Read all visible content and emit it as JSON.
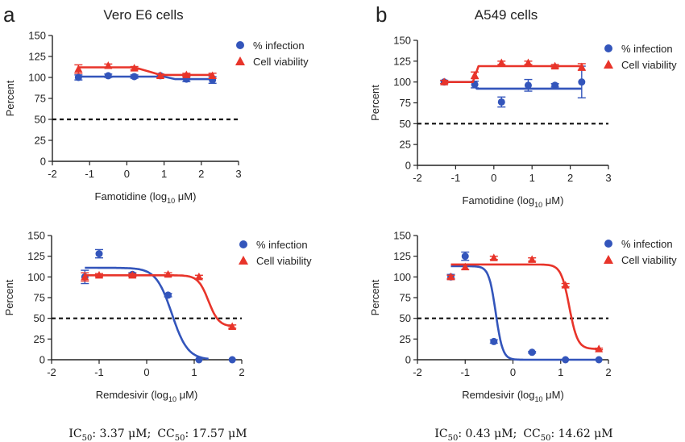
{
  "panels": [
    {
      "letter": "a",
      "title": "Vero E6 cells",
      "summary": {
        "ic_label": "IC",
        "ic_sub": "50",
        "ic_value": ": 3.37 μM;",
        "cc_label": "CC",
        "cc_sub": "50",
        "cc_value": ": 17.57 μM"
      }
    },
    {
      "letter": "b",
      "title": "A549 cells",
      "summary": {
        "ic_label": "IC",
        "ic_sub": "50",
        "ic_value": ": 0.43 μM;",
        "cc_label": "CC",
        "cc_sub": "50",
        "cc_value": ": 14.62 μM"
      }
    }
  ],
  "colors": {
    "infection": "#3355bb",
    "viability": "#e8342a",
    "axis": "#222222"
  },
  "chart_data": [
    {
      "type": "scatter",
      "panel": "a",
      "xlabel": "Famotidine (log",
      "xlabel_sub": "10",
      "xlabel_tail": " μM)",
      "ylabel": "Percent",
      "xlim": [
        -2,
        3
      ],
      "ylim": [
        0,
        150
      ],
      "xticks": [
        -2,
        -1,
        0,
        1,
        2,
        3
      ],
      "yticks": [
        0,
        25,
        50,
        75,
        100,
        125,
        150
      ],
      "reference_line": 50,
      "legend": "top-right",
      "series": [
        {
          "name": "% infection",
          "marker": "circle",
          "color": "#3355bb",
          "points": [
            {
              "x": -1.3,
              "y": 100,
              "err": 3
            },
            {
              "x": -0.5,
              "y": 102,
              "err": 2
            },
            {
              "x": 0.2,
              "y": 101,
              "err": 2
            },
            {
              "x": 0.9,
              "y": 102,
              "err": 2
            },
            {
              "x": 1.6,
              "y": 98,
              "err": 3
            },
            {
              "x": 2.3,
              "y": 97,
              "err": 4
            }
          ],
          "fit": [
            {
              "x": -1.3,
              "y": 101
            },
            {
              "x": 1.0,
              "y": 101
            },
            {
              "x": 1.3,
              "y": 98
            },
            {
              "x": 2.3,
              "y": 98
            }
          ]
        },
        {
          "name": "Cell viability",
          "marker": "triangle",
          "color": "#e8342a",
          "points": [
            {
              "x": -1.3,
              "y": 110,
              "err": 5
            },
            {
              "x": -0.5,
              "y": 114,
              "err": 2
            },
            {
              "x": 0.2,
              "y": 111,
              "err": 2
            },
            {
              "x": 0.9,
              "y": 102,
              "err": 2
            },
            {
              "x": 1.6,
              "y": 103,
              "err": 2
            },
            {
              "x": 2.3,
              "y": 102,
              "err": 3
            }
          ],
          "fit": [
            {
              "x": -1.3,
              "y": 112
            },
            {
              "x": 0.2,
              "y": 112
            },
            {
              "x": 0.6,
              "y": 107
            },
            {
              "x": 0.9,
              "y": 103
            },
            {
              "x": 2.3,
              "y": 103
            }
          ]
        }
      ]
    },
    {
      "type": "scatter",
      "panel": "b",
      "xlabel": "Famotidine (log",
      "xlabel_sub": "10",
      "xlabel_tail": " μM)",
      "ylabel": "Percent",
      "xlim": [
        -2,
        3
      ],
      "ylim": [
        0,
        150
      ],
      "xticks": [
        -2,
        -1,
        0,
        1,
        2,
        3
      ],
      "yticks": [
        0,
        25,
        50,
        75,
        100,
        125,
        150
      ],
      "reference_line": 50,
      "legend": "top-right",
      "series": [
        {
          "name": "% infection",
          "marker": "circle",
          "color": "#3355bb",
          "points": [
            {
              "x": -1.3,
              "y": 100,
              "err": 2
            },
            {
              "x": -0.5,
              "y": 97,
              "err": 4
            },
            {
              "x": 0.2,
              "y": 76,
              "err": 6
            },
            {
              "x": 0.9,
              "y": 96,
              "err": 7
            },
            {
              "x": 1.6,
              "y": 96,
              "err": 2
            },
            {
              "x": 2.3,
              "y": 100,
              "err": 19
            }
          ],
          "fit": [
            {
              "x": -1.3,
              "y": 100
            },
            {
              "x": -0.55,
              "y": 100
            },
            {
              "x": -0.45,
              "y": 92
            },
            {
              "x": 2.3,
              "y": 92
            }
          ]
        },
        {
          "name": "Cell viability",
          "marker": "triangle",
          "color": "#e8342a",
          "points": [
            {
              "x": -1.3,
              "y": 100,
              "err": 2
            },
            {
              "x": -0.5,
              "y": 108,
              "err": 4
            },
            {
              "x": 0.2,
              "y": 123,
              "err": 2
            },
            {
              "x": 0.9,
              "y": 123,
              "err": 2
            },
            {
              "x": 1.6,
              "y": 119,
              "err": 2
            },
            {
              "x": 2.3,
              "y": 118,
              "err": 4
            }
          ],
          "fit": [
            {
              "x": -1.3,
              "y": 100
            },
            {
              "x": -0.55,
              "y": 100
            },
            {
              "x": -0.4,
              "y": 119
            },
            {
              "x": 2.3,
              "y": 119
            }
          ]
        }
      ]
    },
    {
      "type": "scatter",
      "panel": "a",
      "xlabel": "Remdesivir (log",
      "xlabel_sub": "10",
      "xlabel_tail": " μM)",
      "ylabel": "Percent",
      "xlim": [
        -2,
        2
      ],
      "ylim": [
        0,
        150
      ],
      "xticks": [
        -2,
        -1,
        0,
        1,
        2
      ],
      "yticks": [
        0,
        25,
        50,
        75,
        100,
        125,
        150
      ],
      "reference_line": 50,
      "legend": "top-right",
      "series": [
        {
          "name": "% infection",
          "marker": "circle",
          "color": "#3355bb",
          "points": [
            {
              "x": -1.3,
              "y": 100,
              "err": 8
            },
            {
              "x": -1.0,
              "y": 128,
              "err": 5
            },
            {
              "x": -0.3,
              "y": 103,
              "err": 2
            },
            {
              "x": 0.45,
              "y": 78,
              "err": 2
            },
            {
              "x": 1.1,
              "y": 0,
              "err": 0
            },
            {
              "x": 1.8,
              "y": 0,
              "err": 0
            }
          ],
          "fit_sigmoid": {
            "top": 111,
            "bottom": 0,
            "logEC50": 0.53,
            "hill": -2.6,
            "xmin": -1.3,
            "xmax": 1.3
          }
        },
        {
          "name": "Cell viability",
          "marker": "triangle",
          "color": "#e8342a",
          "points": [
            {
              "x": -1.3,
              "y": 100,
              "err": 5
            },
            {
              "x": -1.0,
              "y": 102,
              "err": 2
            },
            {
              "x": -0.3,
              "y": 102,
              "err": 2
            },
            {
              "x": 0.45,
              "y": 103,
              "err": 2
            },
            {
              "x": 1.1,
              "y": 100,
              "err": 2
            },
            {
              "x": 1.8,
              "y": 40,
              "err": 2
            }
          ],
          "fit_sigmoid": {
            "top": 102,
            "bottom": 40,
            "logEC50": 1.3,
            "hill": -4.0,
            "xmin": -1.3,
            "xmax": 1.8
          }
        }
      ]
    },
    {
      "type": "scatter",
      "panel": "b",
      "xlabel": "Remdesivir (log",
      "xlabel_sub": "10",
      "xlabel_tail": " μM)",
      "ylabel": "Percent",
      "xlim": [
        -2,
        2
      ],
      "ylim": [
        0,
        150
      ],
      "xticks": [
        -2,
        -1,
        0,
        1,
        2
      ],
      "yticks": [
        0,
        25,
        50,
        75,
        100,
        125,
        150
      ],
      "reference_line": 50,
      "legend": "top-right",
      "series": [
        {
          "name": "% infection",
          "marker": "circle",
          "color": "#3355bb",
          "points": [
            {
              "x": -1.3,
              "y": 100,
              "err": 3
            },
            {
              "x": -1.0,
              "y": 125,
              "err": 5
            },
            {
              "x": -0.4,
              "y": 22,
              "err": 2
            },
            {
              "x": 0.4,
              "y": 9,
              "err": 1
            },
            {
              "x": 1.1,
              "y": 0,
              "err": 0
            },
            {
              "x": 1.8,
              "y": 0,
              "err": 0
            }
          ],
          "fit_sigmoid": {
            "top": 113,
            "bottom": 0,
            "logEC50": -0.36,
            "hill": -6.0,
            "xmin": -1.3,
            "xmax": 1.8
          }
        },
        {
          "name": "Cell viability",
          "marker": "triangle",
          "color": "#e8342a",
          "points": [
            {
              "x": -1.3,
              "y": 100,
              "err": 2
            },
            {
              "x": -1.0,
              "y": 112,
              "err": 3
            },
            {
              "x": -0.4,
              "y": 123,
              "err": 2
            },
            {
              "x": 0.4,
              "y": 121,
              "err": 2
            },
            {
              "x": 1.1,
              "y": 90,
              "err": 2
            },
            {
              "x": 1.8,
              "y": 13,
              "err": 1
            }
          ],
          "fit_sigmoid": {
            "top": 115,
            "bottom": 13,
            "logEC50": 1.18,
            "hill": -5.0,
            "xmin": -1.3,
            "xmax": 1.8
          }
        }
      ]
    }
  ]
}
